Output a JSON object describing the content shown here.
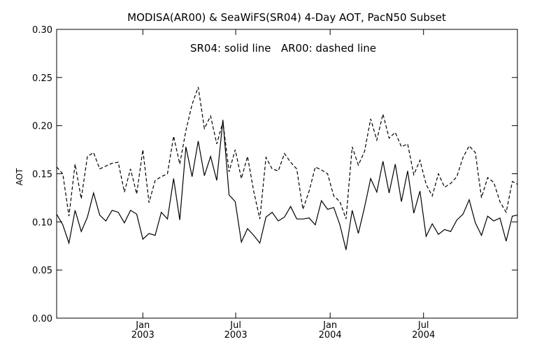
{
  "chart_data": {
    "type": "line",
    "title": "MODISA(AR00) & SeaWiFS(SR04) 4-Day AOT, PacN50 Subset",
    "annotation": "SR04: solid line   AR00: dashed line",
    "xlabel": "",
    "ylabel": "AOT",
    "ylim": [
      0.0,
      0.3
    ],
    "yticks": [
      "0.00",
      "0.05",
      "0.10",
      "0.15",
      "0.20",
      "0.25",
      "0.30"
    ],
    "xlim": [
      "2002-07-17",
      "2004-12-31"
    ],
    "xticks": [
      {
        "x": "2003-01-01",
        "label": "Jan",
        "label2": "2003"
      },
      {
        "x": "2003-07-01",
        "label": "Jul",
        "label2": "2003"
      },
      {
        "x": "2004-01-01",
        "label": "Jan",
        "label2": "2004"
      },
      {
        "x": "2004-07-01",
        "label": "Jul",
        "label2": "2004"
      }
    ],
    "x": [
      "2002-07-17",
      "2002-07-29",
      "2002-08-10",
      "2002-08-22",
      "2002-09-03",
      "2002-09-15",
      "2002-09-27",
      "2002-10-09",
      "2002-10-21",
      "2002-11-02",
      "2002-11-14",
      "2002-11-26",
      "2002-12-08",
      "2002-12-20",
      "2003-01-01",
      "2003-01-13",
      "2003-01-25",
      "2003-02-06",
      "2003-02-18",
      "2003-03-02",
      "2003-03-14",
      "2003-03-26",
      "2003-04-07",
      "2003-04-19",
      "2003-05-01",
      "2003-05-13",
      "2003-05-25",
      "2003-06-06",
      "2003-06-18",
      "2003-06-30",
      "2003-07-12",
      "2003-07-24",
      "2003-08-05",
      "2003-08-17",
      "2003-08-29",
      "2003-09-10",
      "2003-09-22",
      "2003-10-04",
      "2003-10-16",
      "2003-10-28",
      "2003-11-09",
      "2003-11-21",
      "2003-12-03",
      "2003-12-15",
      "2003-12-27",
      "2004-01-08",
      "2004-01-20",
      "2004-02-01",
      "2004-02-13",
      "2004-02-25",
      "2004-03-08",
      "2004-03-20",
      "2004-04-01",
      "2004-04-13",
      "2004-04-25",
      "2004-05-07",
      "2004-05-19",
      "2004-05-31",
      "2004-06-12",
      "2004-06-24",
      "2004-07-06",
      "2004-07-18",
      "2004-07-30",
      "2004-08-11",
      "2004-08-23",
      "2004-09-04",
      "2004-09-16",
      "2004-09-28",
      "2004-10-10",
      "2004-10-22",
      "2004-11-03",
      "2004-11-15",
      "2004-11-27",
      "2004-12-09",
      "2004-12-21",
      "2004-12-31"
    ],
    "series": [
      {
        "name": "SR04",
        "style": "solid",
        "color": "#000000",
        "values": [
          0.108,
          0.097,
          0.078,
          0.112,
          0.09,
          0.105,
          0.13,
          0.107,
          0.101,
          0.112,
          0.11,
          0.099,
          0.112,
          0.108,
          0.082,
          0.088,
          0.086,
          0.11,
          0.103,
          0.145,
          0.102,
          0.178,
          0.147,
          0.184,
          0.148,
          0.168,
          0.143,
          0.206,
          0.128,
          0.121,
          0.079,
          0.093,
          0.086,
          0.078,
          0.105,
          0.11,
          0.101,
          0.105,
          0.116,
          0.103,
          0.103,
          0.104,
          0.097,
          0.122,
          0.113,
          0.115,
          0.097,
          0.071,
          0.112,
          0.088,
          0.115,
          0.145,
          0.131,
          0.163,
          0.13,
          0.16,
          0.121,
          0.153,
          0.109,
          0.132,
          0.085,
          0.098,
          0.087,
          0.092,
          0.09,
          0.102,
          0.108,
          0.123,
          0.099,
          0.086,
          0.106,
          0.101,
          0.104,
          0.08,
          0.106,
          0.107
        ]
      },
      {
        "name": "AR00",
        "style": "dashed",
        "color": "#000000",
        "values": [
          0.157,
          0.15,
          0.106,
          0.16,
          0.124,
          0.168,
          0.172,
          0.155,
          0.158,
          0.161,
          0.162,
          0.131,
          0.155,
          0.129,
          0.175,
          0.12,
          0.143,
          0.147,
          0.15,
          0.189,
          0.16,
          0.195,
          0.222,
          0.24,
          0.197,
          0.21,
          0.181,
          0.204,
          0.152,
          0.175,
          0.145,
          0.168,
          0.132,
          0.103,
          0.167,
          0.155,
          0.153,
          0.171,
          0.162,
          0.155,
          0.113,
          0.132,
          0.157,
          0.154,
          0.15,
          0.127,
          0.121,
          0.103,
          0.178,
          0.159,
          0.173,
          0.207,
          0.185,
          0.212,
          0.187,
          0.193,
          0.178,
          0.181,
          0.149,
          0.164,
          0.139,
          0.127,
          0.15,
          0.136,
          0.14,
          0.147,
          0.167,
          0.179,
          0.172,
          0.125,
          0.146,
          0.141,
          0.121,
          0.11,
          0.142,
          0.139
        ]
      }
    ]
  }
}
